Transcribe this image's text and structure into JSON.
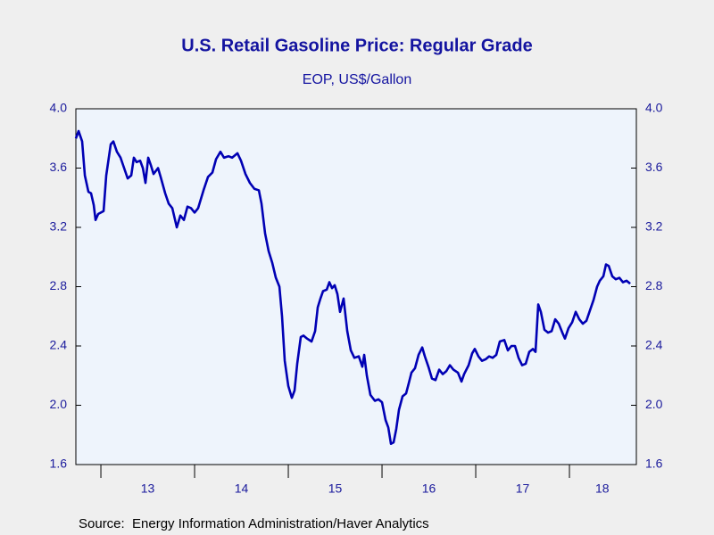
{
  "chart_data": {
    "type": "line",
    "title": "U.S. Retail Gasoline Price: Regular Grade",
    "subtitle": "EOP, US$/Gallon",
    "source": "Source:  Energy Information Administration/Haver Analytics",
    "color": "#0000b4",
    "xlim": [
      12.733,
      18.714
    ],
    "xticks": [
      13,
      14,
      15,
      16,
      17,
      18
    ],
    "xlabels": [
      {
        "value": 13.5,
        "label": "13"
      },
      {
        "value": 14.5,
        "label": "14"
      },
      {
        "value": 15.5,
        "label": "15"
      },
      {
        "value": 16.5,
        "label": "16"
      },
      {
        "value": 17.5,
        "label": "17"
      },
      {
        "value": 18.35,
        "label": "18"
      }
    ],
    "ylim": [
      1.6,
      4.0
    ],
    "yticks": [
      {
        "value": 1.6,
        "label": "1.6"
      },
      {
        "value": 2.0,
        "label": "2.0"
      },
      {
        "value": 2.4,
        "label": "2.4"
      },
      {
        "value": 2.8,
        "label": "2.8"
      },
      {
        "value": 3.2,
        "label": "3.2"
      },
      {
        "value": 3.6,
        "label": "3.6"
      },
      {
        "value": 4.0,
        "label": "4.0"
      }
    ],
    "x": [
      12.733,
      12.762,
      12.8,
      12.829,
      12.867,
      12.895,
      12.924,
      12.943,
      12.971,
      13.029,
      13.057,
      13.105,
      13.133,
      13.171,
      13.21,
      13.248,
      13.286,
      13.324,
      13.352,
      13.381,
      13.419,
      13.448,
      13.476,
      13.505,
      13.533,
      13.562,
      13.61,
      13.638,
      13.686,
      13.724,
      13.762,
      13.81,
      13.848,
      13.886,
      13.924,
      13.962,
      14.0,
      14.038,
      14.095,
      14.143,
      14.19,
      14.229,
      14.276,
      14.314,
      14.362,
      14.4,
      14.457,
      14.495,
      14.543,
      14.59,
      14.638,
      14.686,
      14.714,
      14.752,
      14.79,
      14.829,
      14.867,
      14.905,
      14.933,
      14.962,
      15.0,
      15.038,
      15.067,
      15.095,
      15.133,
      15.162,
      15.2,
      15.248,
      15.286,
      15.314,
      15.343,
      15.371,
      15.41,
      15.438,
      15.467,
      15.495,
      15.524,
      15.552,
      15.59,
      15.629,
      15.667,
      15.705,
      15.752,
      15.79,
      15.81,
      15.838,
      15.876,
      15.924,
      15.962,
      16.0,
      16.038,
      16.067,
      16.095,
      16.124,
      16.152,
      16.181,
      16.219,
      16.257,
      16.286,
      16.314,
      16.352,
      16.39,
      16.429,
      16.457,
      16.495,
      16.533,
      16.571,
      16.61,
      16.648,
      16.686,
      16.724,
      16.762,
      16.81,
      16.848,
      16.876,
      16.924,
      16.962,
      16.99,
      17.029,
      17.067,
      17.105,
      17.143,
      17.181,
      17.219,
      17.257,
      17.305,
      17.343,
      17.381,
      17.419,
      17.457,
      17.495,
      17.533,
      17.571,
      17.61,
      17.638,
      17.667,
      17.695,
      17.733,
      17.771,
      17.81,
      17.848,
      17.886,
      17.924,
      17.952,
      17.99,
      18.029,
      18.067,
      18.105,
      18.143,
      18.181,
      18.219,
      18.257,
      18.295,
      18.324,
      18.362,
      18.39,
      18.419,
      18.457,
      18.495,
      18.533,
      18.571,
      18.61,
      18.648
    ],
    "values": [
      3.8,
      3.85,
      3.78,
      3.55,
      3.44,
      3.43,
      3.35,
      3.25,
      3.29,
      3.31,
      3.55,
      3.76,
      3.78,
      3.71,
      3.67,
      3.6,
      3.53,
      3.55,
      3.67,
      3.64,
      3.65,
      3.6,
      3.5,
      3.67,
      3.62,
      3.56,
      3.6,
      3.54,
      3.43,
      3.36,
      3.33,
      3.2,
      3.28,
      3.25,
      3.34,
      3.33,
      3.3,
      3.33,
      3.45,
      3.54,
      3.57,
      3.66,
      3.71,
      3.67,
      3.68,
      3.67,
      3.7,
      3.65,
      3.56,
      3.5,
      3.46,
      3.45,
      3.36,
      3.16,
      3.04,
      2.96,
      2.86,
      2.8,
      2.6,
      2.3,
      2.13,
      2.05,
      2.1,
      2.28,
      2.46,
      2.47,
      2.45,
      2.43,
      2.5,
      2.66,
      2.72,
      2.77,
      2.78,
      2.83,
      2.79,
      2.81,
      2.75,
      2.63,
      2.72,
      2.5,
      2.37,
      2.32,
      2.33,
      2.26,
      2.34,
      2.2,
      2.07,
      2.03,
      2.04,
      2.02,
      1.9,
      1.85,
      1.74,
      1.75,
      1.84,
      1.97,
      2.06,
      2.08,
      2.15,
      2.22,
      2.25,
      2.34,
      2.39,
      2.33,
      2.26,
      2.18,
      2.17,
      2.24,
      2.21,
      2.23,
      2.27,
      2.24,
      2.22,
      2.16,
      2.21,
      2.27,
      2.35,
      2.38,
      2.33,
      2.3,
      2.31,
      2.33,
      2.32,
      2.34,
      2.43,
      2.44,
      2.37,
      2.4,
      2.4,
      2.32,
      2.27,
      2.28,
      2.36,
      2.38,
      2.36,
      2.68,
      2.63,
      2.51,
      2.49,
      2.5,
      2.58,
      2.55,
      2.49,
      2.45,
      2.52,
      2.56,
      2.63,
      2.58,
      2.55,
      2.57,
      2.64,
      2.71,
      2.8,
      2.84,
      2.87,
      2.95,
      2.94,
      2.87,
      2.85,
      2.86,
      2.83,
      2.84,
      2.82
    ]
  }
}
